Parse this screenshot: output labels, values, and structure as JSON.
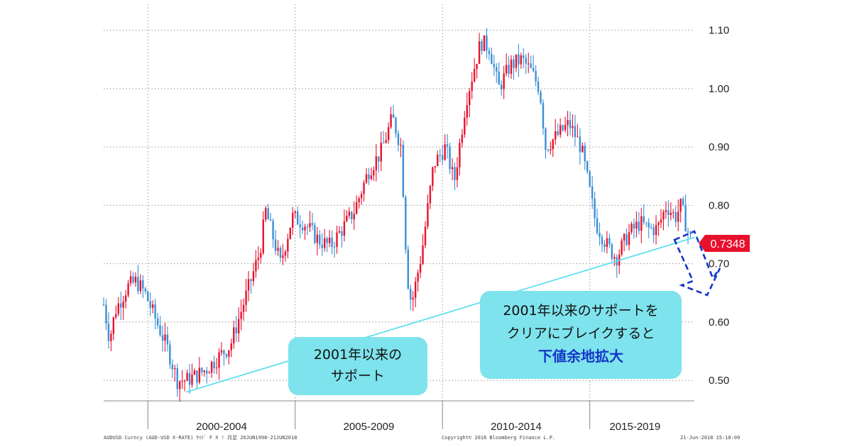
{
  "chart_data": {
    "type": "candlestick",
    "series_name": "AUD/USD",
    "y_ticks": [
      0.5,
      0.6,
      0.7,
      0.8,
      0.9,
      1.0,
      1.1
    ],
    "y_tick_labels": [
      "0.50",
      "0.60",
      "0.70",
      "0.80",
      "0.90",
      "1.00",
      "1.10"
    ],
    "ylim": [
      0.465,
      1.125
    ],
    "xlim": [
      1998.5,
      2018.55
    ],
    "x_period_labels": [
      "2000-2004",
      "2005-2009",
      "2010-2014",
      "2015-2019"
    ],
    "x_dividers": [
      2000.0,
      2005.0,
      2010.0,
      2015.0
    ],
    "grid": true,
    "price_path": [
      [
        1998.5,
        0.63
      ],
      [
        1998.7,
        0.57
      ],
      [
        1998.9,
        0.62
      ],
      [
        1999.3,
        0.66
      ],
      [
        1999.6,
        0.67
      ],
      [
        1999.9,
        0.65
      ],
      [
        2000.3,
        0.6
      ],
      [
        2000.7,
        0.55
      ],
      [
        2001.0,
        0.5
      ],
      [
        2001.3,
        0.5
      ],
      [
        2001.7,
        0.51
      ],
      [
        2002.0,
        0.52
      ],
      [
        2002.4,
        0.54
      ],
      [
        2002.8,
        0.56
      ],
      [
        2003.3,
        0.64
      ],
      [
        2003.8,
        0.72
      ],
      [
        2004.0,
        0.79
      ],
      [
        2004.5,
        0.7
      ],
      [
        2004.9,
        0.78
      ],
      [
        2005.3,
        0.77
      ],
      [
        2005.8,
        0.74
      ],
      [
        2006.2,
        0.73
      ],
      [
        2006.6,
        0.76
      ],
      [
        2007.0,
        0.79
      ],
      [
        2007.5,
        0.86
      ],
      [
        2007.9,
        0.89
      ],
      [
        2008.3,
        0.95
      ],
      [
        2008.6,
        0.9
      ],
      [
        2008.8,
        0.68
      ],
      [
        2008.95,
        0.63
      ],
      [
        2009.3,
        0.72
      ],
      [
        2009.7,
        0.87
      ],
      [
        2010.1,
        0.9
      ],
      [
        2010.4,
        0.84
      ],
      [
        2010.8,
        0.98
      ],
      [
        2011.3,
        1.08
      ],
      [
        2011.6,
        1.07
      ],
      [
        2011.9,
        1.0
      ],
      [
        2012.3,
        1.04
      ],
      [
        2012.7,
        1.05
      ],
      [
        2013.0,
        1.03
      ],
      [
        2013.3,
        1.0
      ],
      [
        2013.5,
        0.9
      ],
      [
        2013.9,
        0.92
      ],
      [
        2014.3,
        0.94
      ],
      [
        2014.7,
        0.9
      ],
      [
        2014.9,
        0.85
      ],
      [
        2015.2,
        0.77
      ],
      [
        2015.6,
        0.73
      ],
      [
        2015.9,
        0.71
      ],
      [
        2016.3,
        0.75
      ],
      [
        2016.7,
        0.77
      ],
      [
        2017.0,
        0.76
      ],
      [
        2017.3,
        0.76
      ],
      [
        2017.6,
        0.8
      ],
      [
        2017.9,
        0.78
      ],
      [
        2018.1,
        0.8
      ],
      [
        2018.3,
        0.76
      ],
      [
        2018.47,
        0.7348
      ]
    ],
    "support_trendline": {
      "start": [
        2001.3,
        0.48
      ],
      "end": [
        2018.55,
        0.745
      ]
    },
    "last_price": {
      "value": 0.7348,
      "label": "0.7348",
      "color": "#e8112d"
    },
    "up_color": "#e8112d",
    "down_color": "#3a8fd6",
    "trendline_color": "#5ee0ee",
    "dashed_arrow_color": "#1535c8"
  },
  "annotations": {
    "left_callout": {
      "line1": "2001年以来の",
      "line2": "サポート"
    },
    "right_callout": {
      "line1": "2001年以来のサポートを",
      "line2": "クリアにブレイクすると",
      "line3": "下値余地拡大"
    }
  },
  "footer": {
    "left": "AUDUSD Curncy (AUD-USD X-RATE) ｻｲﾄﾞ F X ! 月足 26JUN1998-21JUN2018",
    "center": "Copyright© 2018 Bloomberg Finance L.P.",
    "right": "21-Jun-2018 15:18:09"
  }
}
